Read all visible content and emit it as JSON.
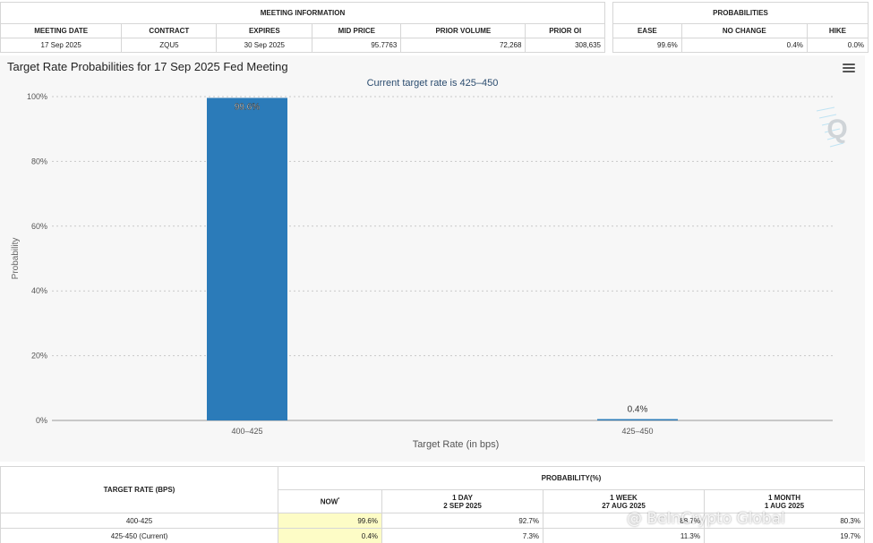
{
  "meeting_info": {
    "header": "MEETING INFORMATION",
    "columns": [
      "MEETING DATE",
      "CONTRACT",
      "EXPIRES",
      "MID PRICE",
      "PRIOR VOLUME",
      "PRIOR OI"
    ],
    "row": [
      "17 Sep 2025",
      "ZQU5",
      "30 Sep 2025",
      "95.7763",
      "72,268",
      "308,635"
    ]
  },
  "probabilities": {
    "header": "PROBABILITIES",
    "columns": [
      "EASE",
      "NO CHANGE",
      "HIKE"
    ],
    "row": [
      "99.6%",
      "0.4%",
      "0.0%"
    ]
  },
  "chart": {
    "menu_icon": "hamburger-menu-icon",
    "logo_icon": "q-logo-icon"
  },
  "chart_data": {
    "type": "bar",
    "title": "Target Rate Probabilities for 17 Sep 2025 Fed Meeting",
    "subtitle": "Current target rate is 425–450",
    "xlabel": "Target Rate (in bps)",
    "ylabel": "Probability",
    "categories": [
      "400–425",
      "425–450"
    ],
    "values": [
      99.6,
      0.4
    ],
    "data_labels": [
      "99.6%",
      "0.4%"
    ],
    "ylim": [
      0,
      100
    ],
    "yticks": [
      "0%",
      "20%",
      "40%",
      "60%",
      "80%",
      "100%"
    ],
    "bar_color": "#2b7bb9",
    "grid": true
  },
  "bottom_table": {
    "target_rate_header": "TARGET RATE (BPS)",
    "probability_header": "PROBABILITY(%)",
    "now_label": "NOW",
    "now_marker": "*",
    "periods": [
      {
        "line1": "1 DAY",
        "line2": "2 SEP 2025"
      },
      {
        "line1": "1 WEEK",
        "line2": "27 AUG 2025"
      },
      {
        "line1": "1 MONTH",
        "line2": "1 AUG 2025"
      }
    ],
    "rows": [
      {
        "rate": "400-425",
        "now": "99.6%",
        "day": "92.7%",
        "week": "88.7%",
        "month": "80.3%"
      },
      {
        "rate": "425-450 (Current)",
        "now": "0.4%",
        "day": "7.3%",
        "week": "11.3%",
        "month": "19.7%"
      }
    ]
  },
  "watermark": "@ BeInCrypto Global"
}
